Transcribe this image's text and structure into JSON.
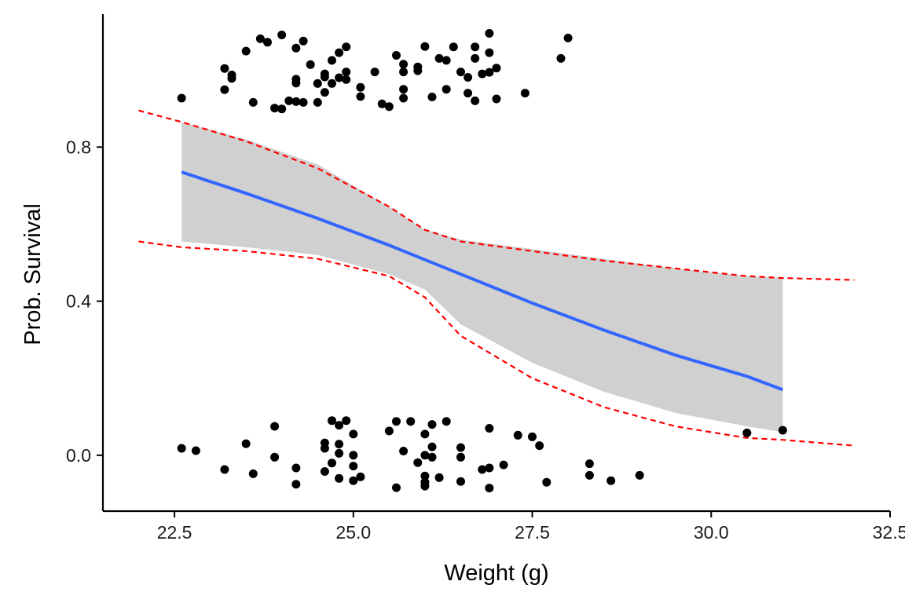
{
  "chart_data": {
    "type": "scatter",
    "title": "",
    "xlabel": "Weight (g)",
    "ylabel": "Prob. Survival",
    "xlim": [
      21.5,
      32.5
    ],
    "ylim": [
      -0.145,
      1.145
    ],
    "grid": false,
    "x_ticks": [
      22.5,
      25.0,
      27.5,
      30.0,
      32.5
    ],
    "x_tick_labels": [
      "22.5",
      "25.0",
      "27.5",
      "30.0",
      "32.5"
    ],
    "y_ticks": [
      0.0,
      0.4,
      0.8
    ],
    "y_tick_labels": [
      "0.0",
      "0.4",
      "0.8"
    ],
    "colors": {
      "points": "#000000",
      "fit_line": "#3366ff",
      "ribbon": "#d0d0d0",
      "bounds": "#ff0000"
    },
    "fit": {
      "x": [
        22.6,
        23.5,
        24.5,
        25.5,
        26.5,
        27.5,
        28.5,
        29.5,
        30.5,
        31.0
      ],
      "y": [
        0.735,
        0.68,
        0.615,
        0.545,
        0.47,
        0.395,
        0.325,
        0.26,
        0.205,
        0.17
      ]
    },
    "ribbon": {
      "x": [
        22.6,
        23.5,
        24.5,
        25.5,
        26.0,
        26.5,
        27.5,
        28.5,
        29.5,
        30.5,
        31.0
      ],
      "upper": [
        0.865,
        0.82,
        0.755,
        0.645,
        0.585,
        0.56,
        0.535,
        0.51,
        0.485,
        0.465,
        0.46
      ],
      "lower": [
        0.555,
        0.54,
        0.52,
        0.47,
        0.43,
        0.34,
        0.24,
        0.165,
        0.11,
        0.075,
        0.06
      ]
    },
    "bounds": {
      "x": [
        22.0,
        22.6,
        23.5,
        24.5,
        25.5,
        26.0,
        26.5,
        27.5,
        28.5,
        29.5,
        30.5,
        31.0,
        32.0
      ],
      "upper": [
        0.895,
        0.865,
        0.815,
        0.745,
        0.645,
        0.585,
        0.555,
        0.53,
        0.505,
        0.485,
        0.465,
        0.46,
        0.455
      ],
      "lower": [
        0.555,
        0.54,
        0.53,
        0.51,
        0.465,
        0.41,
        0.31,
        0.2,
        0.125,
        0.075,
        0.045,
        0.04,
        0.025
      ]
    },
    "series": [
      {
        "values": [
          [
            22.6,
            0.927
          ],
          [
            23.2,
            1.004
          ],
          [
            23.2,
            0.949
          ],
          [
            23.3,
            0.987
          ],
          [
            23.3,
            0.978
          ],
          [
            23.5,
            1.049
          ],
          [
            23.6,
            0.916
          ],
          [
            23.7,
            1.081
          ],
          [
            23.8,
            1.072
          ],
          [
            23.9,
            0.901
          ],
          [
            24.0,
            1.091
          ],
          [
            24.0,
            0.899
          ],
          [
            24.1,
            0.92
          ],
          [
            24.2,
            1.057
          ],
          [
            24.2,
            0.976
          ],
          [
            24.2,
            0.966
          ],
          [
            24.2,
            0.918
          ],
          [
            24.3,
            1.075
          ],
          [
            24.3,
            0.916
          ],
          [
            24.4,
            1.014
          ],
          [
            24.5,
            0.916
          ],
          [
            24.5,
            0.965
          ],
          [
            24.6,
            0.99
          ],
          [
            24.6,
            0.982
          ],
          [
            24.6,
            0.942
          ],
          [
            24.7,
            1.025
          ],
          [
            24.7,
            0.965
          ],
          [
            24.8,
            1.045
          ],
          [
            24.8,
            0.98
          ],
          [
            24.9,
            1.06
          ],
          [
            24.9,
            0.995
          ],
          [
            24.9,
            0.975
          ],
          [
            25.1,
            0.955
          ],
          [
            25.1,
            0.931
          ],
          [
            25.3,
            0.995
          ],
          [
            25.4,
            0.912
          ],
          [
            25.5,
            0.905
          ],
          [
            25.6,
            1.038
          ],
          [
            25.7,
            1.015
          ],
          [
            25.7,
            0.995
          ],
          [
            25.7,
            0.95
          ],
          [
            25.7,
            0.927
          ],
          [
            25.9,
            1.008
          ],
          [
            25.9,
            0.998
          ],
          [
            26.0,
            1.061
          ],
          [
            26.1,
            0.93
          ],
          [
            26.2,
            1.03
          ],
          [
            26.3,
            1.025
          ],
          [
            26.3,
            0.95
          ],
          [
            26.4,
            1.06
          ],
          [
            26.5,
            0.995
          ],
          [
            26.6,
            0.981
          ],
          [
            26.6,
            0.94
          ],
          [
            26.7,
            1.06
          ],
          [
            26.7,
            1.03
          ],
          [
            26.7,
            0.92
          ],
          [
            26.8,
            0.99
          ],
          [
            26.9,
            1.095
          ],
          [
            26.9,
            1.045
          ],
          [
            26.9,
            0.994
          ],
          [
            27.0,
            1.005
          ],
          [
            27.0,
            0.925
          ],
          [
            27.4,
            0.94
          ],
          [
            27.9,
            1.03
          ],
          [
            28.0,
            1.083
          ]
        ]
      },
      {
        "values": [
          [
            22.6,
            0.018
          ],
          [
            22.8,
            0.012
          ],
          [
            23.2,
            -0.037
          ],
          [
            23.5,
            0.03
          ],
          [
            23.6,
            -0.048
          ],
          [
            23.9,
            0.075
          ],
          [
            23.9,
            -0.005
          ],
          [
            24.2,
            -0.033
          ],
          [
            24.2,
            -0.075
          ],
          [
            24.6,
            0.032
          ],
          [
            24.6,
            0.018
          ],
          [
            24.6,
            -0.042
          ],
          [
            24.7,
            0.09
          ],
          [
            24.7,
            -0.02
          ],
          [
            24.8,
            0.078
          ],
          [
            24.8,
            0.029
          ],
          [
            24.8,
            0.005
          ],
          [
            24.8,
            -0.06
          ],
          [
            24.9,
            0.09
          ],
          [
            25.0,
            0.055
          ],
          [
            25.0,
            0.0
          ],
          [
            25.0,
            -0.028
          ],
          [
            25.0,
            -0.066
          ],
          [
            25.1,
            -0.056
          ],
          [
            25.5,
            0.063
          ],
          [
            25.6,
            0.088
          ],
          [
            25.6,
            -0.084
          ],
          [
            25.7,
            0.011
          ],
          [
            25.8,
            0.088
          ],
          [
            25.9,
            -0.019
          ],
          [
            26.0,
            0.055
          ],
          [
            26.0,
            0.0
          ],
          [
            26.0,
            -0.054
          ],
          [
            26.0,
            -0.07
          ],
          [
            26.0,
            -0.08
          ],
          [
            26.1,
            0.08
          ],
          [
            26.1,
            0.022
          ],
          [
            26.1,
            -0.005
          ],
          [
            26.2,
            -0.058
          ],
          [
            26.3,
            0.088
          ],
          [
            26.5,
            0.02
          ],
          [
            26.5,
            -0.005
          ],
          [
            26.5,
            -0.068
          ],
          [
            26.8,
            -0.037
          ],
          [
            26.9,
            0.07
          ],
          [
            26.9,
            -0.033
          ],
          [
            26.9,
            -0.085
          ],
          [
            27.1,
            -0.025
          ],
          [
            27.3,
            0.052
          ],
          [
            27.5,
            0.048
          ],
          [
            27.6,
            0.025
          ],
          [
            27.7,
            -0.07
          ],
          [
            28.3,
            -0.022
          ],
          [
            28.3,
            -0.052
          ],
          [
            28.6,
            -0.066
          ],
          [
            29.0,
            -0.052
          ],
          [
            30.5,
            0.058
          ],
          [
            31.0,
            0.065
          ]
        ]
      }
    ]
  }
}
